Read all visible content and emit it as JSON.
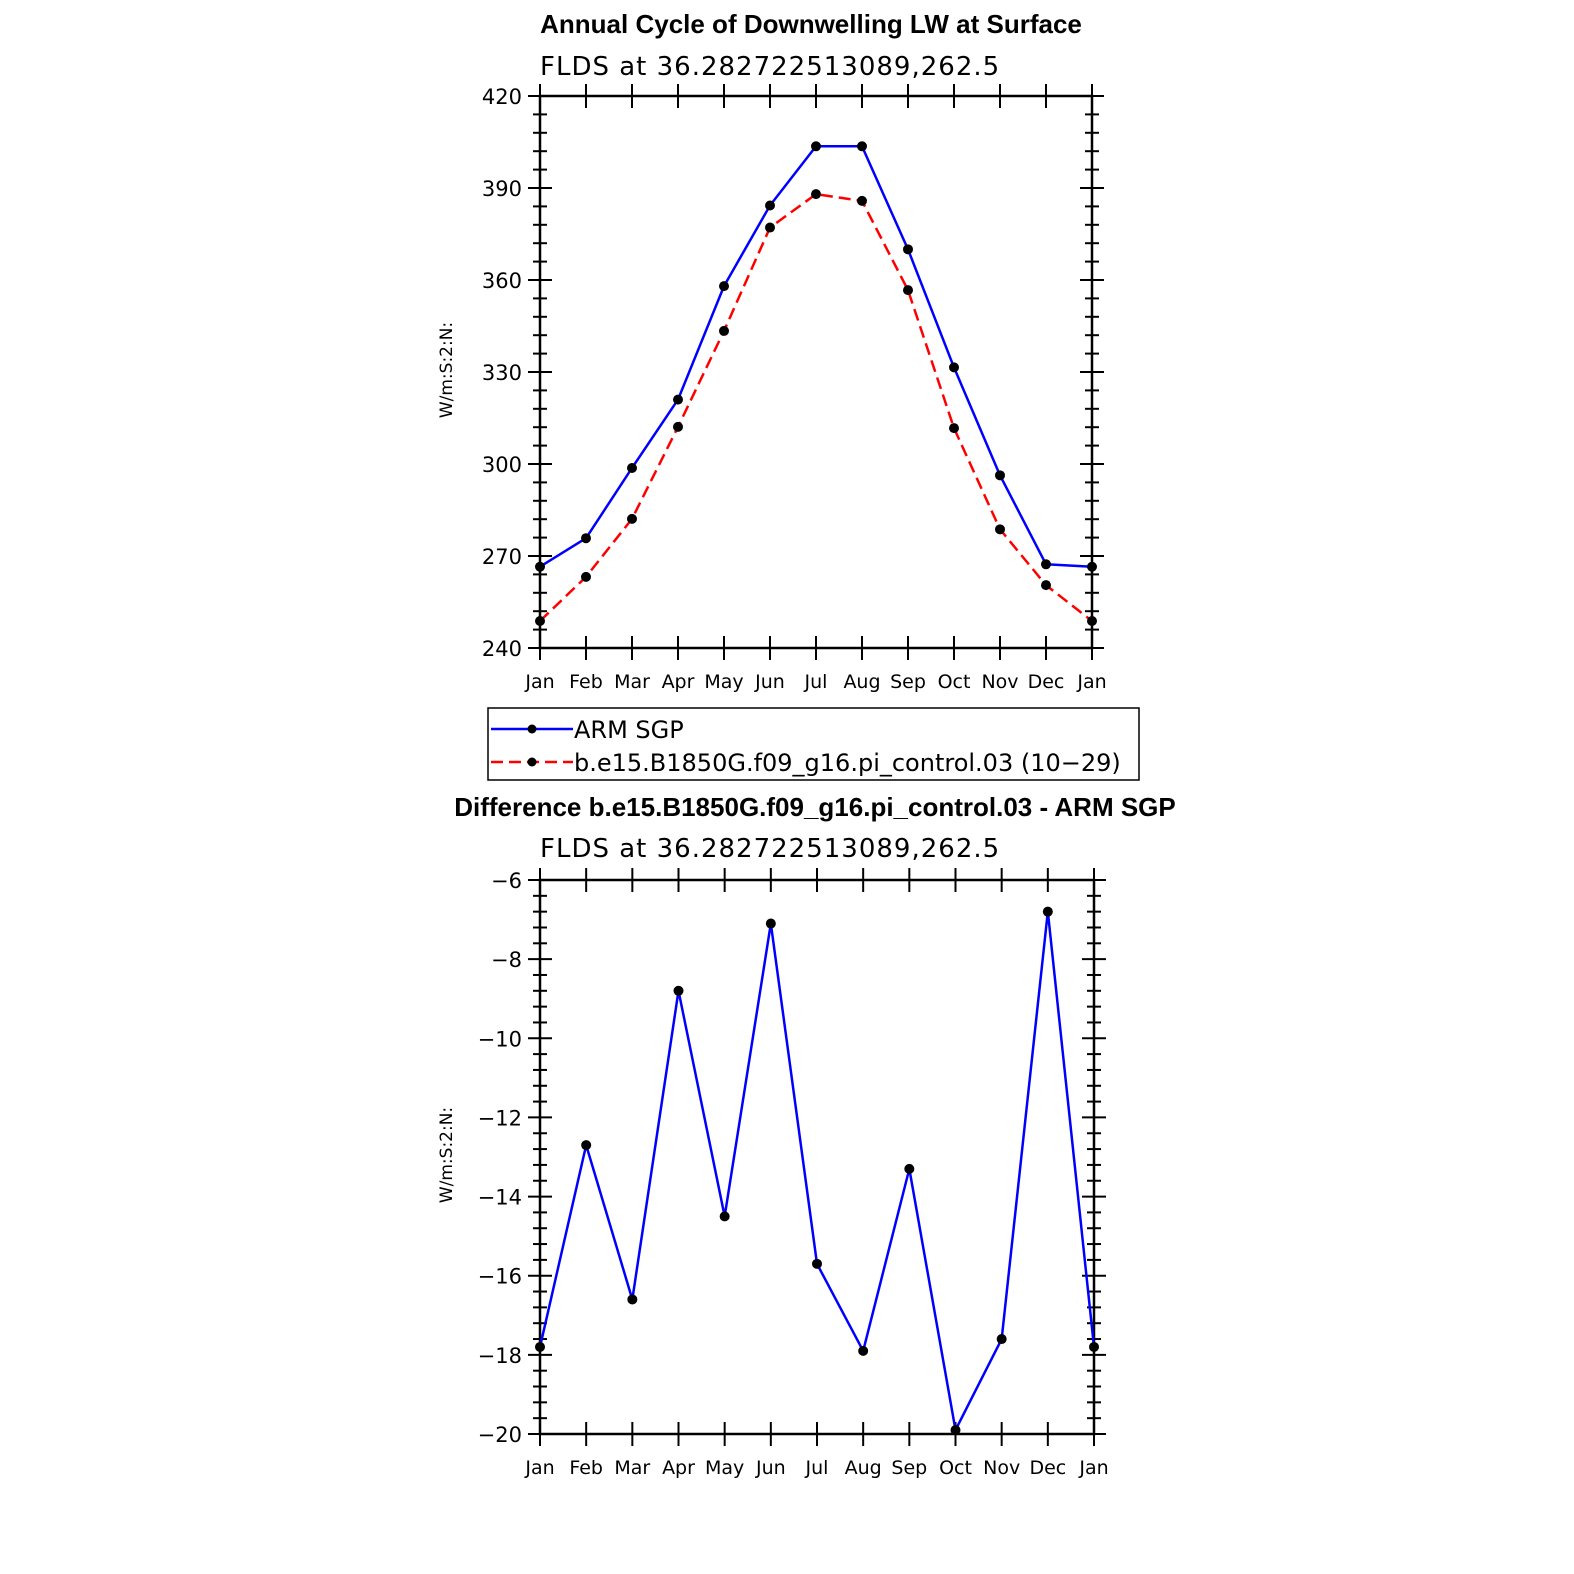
{
  "chart_data": [
    {
      "type": "line",
      "title": "Annual Cycle of Downwelling LW at Surface",
      "subtitle": "FLDS at 36.282722513089,262.5",
      "ylabel": "W/m:S:2:N:",
      "xlabel": "",
      "categories": [
        "Jan",
        "Feb",
        "Mar",
        "Apr",
        "May",
        "Jun",
        "Jul",
        "Aug",
        "Sep",
        "Oct",
        "Nov",
        "Dec",
        "Jan"
      ],
      "ylim": [
        240,
        420
      ],
      "yticks": [
        240,
        270,
        300,
        330,
        360,
        390,
        420
      ],
      "series": [
        {
          "name": "ARM SGP",
          "color": "#0000ff",
          "style": "solid",
          "marker": "dot",
          "values": [
            266.5,
            275.8,
            298.7,
            321.0,
            358.0,
            384.3,
            403.6,
            403.6,
            370.0,
            331.5,
            296.3,
            267.3,
            266.5
          ]
        },
        {
          "name": "b.e15.B1850G.f09_g16.pi_control.03 (10−29)",
          "color": "#ff0000",
          "style": "dashed",
          "marker": "dot",
          "values": [
            248.8,
            263.2,
            282.1,
            312.1,
            343.4,
            377.1,
            388.0,
            385.8,
            356.7,
            311.7,
            278.7,
            260.5,
            248.8
          ]
        }
      ],
      "legend": {
        "position": "bottom",
        "entries": [
          "ARM SGP",
          "b.e15.B1850G.f09_g16.pi_control.03 (10−29)"
        ]
      },
      "grid": false
    },
    {
      "type": "line",
      "title": "Difference b.e15.B1850G.f09_g16.pi_control.03 - ARM SGP",
      "subtitle": "FLDS at 36.282722513089,262.5",
      "ylabel": "W/m:S:2:N:",
      "xlabel": "",
      "categories": [
        "Jan",
        "Feb",
        "Mar",
        "Apr",
        "May",
        "Jun",
        "Jul",
        "Aug",
        "Sep",
        "Oct",
        "Nov",
        "Dec",
        "Jan"
      ],
      "ylim": [
        -20,
        -6
      ],
      "yticks": [
        -20,
        -18,
        -16,
        -14,
        -12,
        -10,
        -8,
        -6
      ],
      "ytick_labels": [
        "−20",
        "−18",
        "−16",
        "−14",
        "−12",
        "−10",
        "−8",
        "−6"
      ],
      "series": [
        {
          "color": "#0000ff",
          "style": "solid",
          "marker": "dot",
          "values": [
            -17.8,
            -12.7,
            -16.6,
            -8.8,
            -14.5,
            -7.1,
            -15.7,
            -17.9,
            -13.3,
            -19.9,
            -17.6,
            -6.8,
            -17.8
          ]
        }
      ],
      "grid": false
    }
  ]
}
